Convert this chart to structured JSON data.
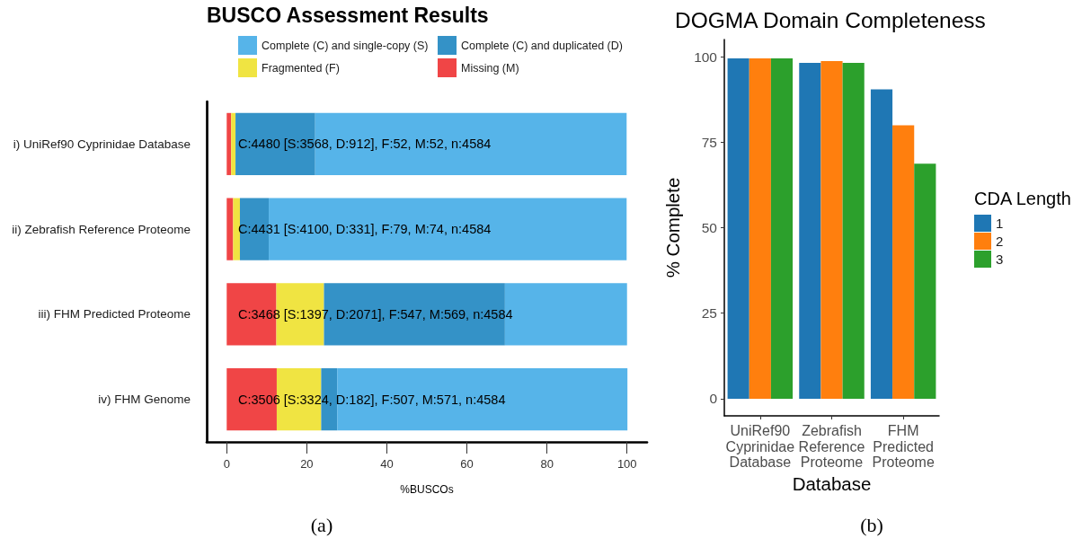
{
  "chart_data": [
    {
      "type": "bar",
      "orientation": "horizontal",
      "stacked": true,
      "title": "BUSCO Assessment Results",
      "xlabel": "%BUSCOs",
      "categories": [
        "i) UniRef90 Cyprinidae Database",
        "ii) Zebrafish Reference Proteome",
        "iii) FHM Predicted Proteome",
        "iv) FHM Genome"
      ],
      "series": [
        {
          "name": "Missing (M)",
          "color": "#f04546",
          "values": [
            1.1,
            1.6,
            12.4,
            12.5
          ]
        },
        {
          "name": "Fragmented (F)",
          "color": "#f0e442",
          "values": [
            1.1,
            1.7,
            11.9,
            11.1
          ]
        },
        {
          "name": "Complete (C) and duplicated (D)",
          "color": "#3492c7",
          "values": [
            19.9,
            7.2,
            45.2,
            4.0
          ]
        },
        {
          "name": "Complete (C) and single-copy (S)",
          "color": "#56b4e9",
          "values": [
            77.8,
            89.4,
            30.5,
            72.5
          ]
        }
      ],
      "xlim": [
        -5,
        105
      ],
      "xticks": [
        0,
        20,
        40,
        60,
        80,
        100
      ],
      "legend": "top",
      "annotations": [
        "C:4480 [S:3568, D:912], F:52, M:52, n:4584",
        "C:4431 [S:4100, D:331], F:79, M:74, n:4584",
        "C:3468 [S:1397, D:2071], F:547, M:569, n:4584",
        "C:3506 [S:3324, D:182], F:507, M:571, n:4584",
        "(a)"
      ]
    },
    {
      "type": "bar",
      "title": "DOGMA Domain Completeness",
      "xlabel": "Database",
      "ylabel": "% Complete",
      "legend_title": "CDA Length",
      "categories": [
        "UniRef90\nCyprinidae\nDatabase",
        "Zebrafish\nReference\nProteome",
        "FHM\nPredicted\nProteome"
      ],
      "series": [
        {
          "name": "1",
          "color": "#1f77b4",
          "values": [
            99.5,
            98.2,
            90.4
          ]
        },
        {
          "name": "2",
          "color": "#ff7f0e",
          "values": [
            99.5,
            98.7,
            79.9
          ]
        },
        {
          "name": "3",
          "color": "#2ca02c",
          "values": [
            99.5,
            98.2,
            68.7
          ]
        }
      ],
      "ylim": [
        -5,
        105
      ],
      "yticks": [
        0,
        25,
        50,
        75,
        100
      ],
      "legend": "right",
      "annotations": [
        "(b)"
      ]
    }
  ]
}
